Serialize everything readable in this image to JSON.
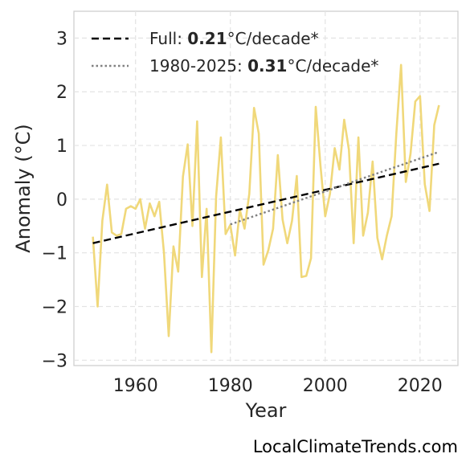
{
  "chart_data": {
    "type": "line",
    "xlabel": "Year",
    "ylabel": "Anomaly (°C)",
    "xlim": [
      1947,
      2028
    ],
    "ylim": [
      -3.1,
      3.5
    ],
    "xticks": [
      1960,
      1980,
      2000,
      2020
    ],
    "yticks": [
      3,
      2,
      1,
      0,
      -1,
      -2,
      -3
    ],
    "ytick_labels": [
      "3",
      "2",
      "1",
      "0",
      "−1",
      "−2",
      "−3"
    ],
    "grid": true,
    "legend_position": "top-left",
    "colors": {
      "series": "#f0d87a",
      "trend_full": "#000000",
      "trend_recent": "#808080"
    },
    "series": [
      {
        "x": [
          1951,
          1952,
          1953,
          1954,
          1955,
          1956,
          1957,
          1958,
          1959,
          1960,
          1961,
          1962,
          1963,
          1964,
          1965,
          1966,
          1967,
          1968,
          1969,
          1970,
          1971,
          1972,
          1973,
          1974,
          1975,
          1976,
          1977,
          1978,
          1979,
          1980,
          1981,
          1982,
          1983,
          1984,
          1985,
          1986,
          1987,
          1988,
          1989,
          1990,
          1991,
          1992,
          1993,
          1994,
          1995,
          1996,
          1997,
          1998,
          1999,
          2000,
          2001,
          2002,
          2003,
          2004,
          2005,
          2006,
          2007,
          2008,
          2009,
          2010,
          2011,
          2012,
          2013,
          2014,
          2015,
          2016,
          2017,
          2018,
          2019,
          2020,
          2021,
          2022,
          2023,
          2024
        ],
        "values": [
          -0.7,
          -2.0,
          -0.4,
          0.27,
          -0.62,
          -0.68,
          -0.65,
          -0.18,
          -0.13,
          -0.18,
          0.0,
          -0.55,
          -0.08,
          -0.32,
          -0.05,
          -1.0,
          -2.55,
          -0.88,
          -1.35,
          0.42,
          1.02,
          -0.5,
          1.45,
          -1.45,
          -0.18,
          -2.85,
          0.05,
          1.15,
          -0.65,
          -0.48,
          -1.05,
          -0.2,
          -0.55,
          0.1,
          1.7,
          1.22,
          -1.22,
          -0.95,
          -0.55,
          0.82,
          -0.38,
          -0.82,
          -0.4,
          0.43,
          -1.45,
          -1.43,
          -1.1,
          1.72,
          0.62,
          -0.32,
          0.1,
          0.95,
          0.55,
          1.48,
          0.92,
          -0.82,
          1.15,
          -0.68,
          -0.25,
          0.7,
          -0.72,
          -1.12,
          -0.68,
          -0.32,
          1.22,
          2.5,
          0.32,
          0.85,
          1.82,
          1.92,
          0.28,
          -0.22,
          1.38,
          1.75
        ]
      }
    ],
    "trends": [
      {
        "label_prefix": "Full: ",
        "rate": "0.21",
        "label_suffix": "°C/decade*",
        "style": "dashed",
        "x": [
          1951,
          2024
        ],
        "y": [
          -0.82,
          0.66
        ]
      },
      {
        "label_prefix": "1980-2025: ",
        "rate": "0.31",
        "label_suffix": "°C/decade*",
        "style": "dotted",
        "x": [
          1980,
          2024
        ],
        "y": [
          -0.47,
          0.88
        ]
      }
    ]
  },
  "watermark": "LocalClimateTrends.com"
}
